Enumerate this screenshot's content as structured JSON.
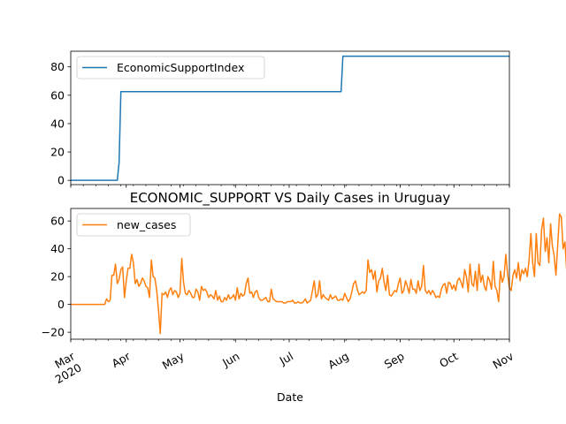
{
  "chart_data": [
    {
      "type": "line",
      "title": "",
      "xlabel": "",
      "ylabel": "",
      "ylim": [
        -3,
        91
      ],
      "yticks": [
        0,
        20,
        40,
        60,
        80
      ],
      "legend_placement": "top-left",
      "grid": false,
      "series": [
        {
          "name": "EconomicSupportIndex",
          "color": "#1f77b4",
          "points": [
            [
              "2020-03-01",
              0
            ],
            [
              "2020-03-27",
              0
            ],
            [
              "2020-03-28",
              12.5
            ],
            [
              "2020-03-29",
              62.5
            ],
            [
              "2020-07-30",
              62.5
            ],
            [
              "2020-07-31",
              87.5
            ],
            [
              "2020-11-01",
              87.5
            ]
          ]
        }
      ]
    },
    {
      "type": "line",
      "title": "ECONOMIC_SUPPORT VS Daily Cases in Uruguay",
      "xlabel": "Date",
      "ylabel": "",
      "ylim": [
        -25,
        69
      ],
      "yticks": [
        -20,
        0,
        20,
        40,
        60
      ],
      "x_tick_labels": [
        {
          "date": "2020-03-01",
          "label": "Mar",
          "sublabel": "2020"
        },
        {
          "date": "2020-04-01",
          "label": "Apr"
        },
        {
          "date": "2020-05-01",
          "label": "May"
        },
        {
          "date": "2020-06-01",
          "label": "Jun"
        },
        {
          "date": "2020-07-01",
          "label": "Jul"
        },
        {
          "date": "2020-08-01",
          "label": "Aug"
        },
        {
          "date": "2020-09-01",
          "label": "Sep"
        },
        {
          "date": "2020-10-01",
          "label": "Oct"
        },
        {
          "date": "2020-11-01",
          "label": "Nov"
        }
      ],
      "legend_placement": "top-left",
      "grid": false,
      "series": [
        {
          "name": "new_cases",
          "color": "#ff7f0e",
          "start": "2020-03-01",
          "values": [
            0,
            0,
            0,
            0,
            0,
            0,
            0,
            0,
            0,
            0,
            0,
            0,
            0,
            0,
            0,
            0,
            0,
            0,
            0,
            0,
            4,
            2,
            3,
            21,
            21,
            29,
            15,
            18,
            25,
            27,
            5,
            17,
            26,
            26,
            36,
            30,
            15,
            18,
            13,
            15,
            19,
            17,
            13,
            12,
            5,
            32,
            20,
            19,
            10,
            -4,
            -21,
            8,
            7,
            9,
            5,
            10,
            12,
            7,
            10,
            9,
            5,
            8,
            33,
            16,
            8,
            7,
            10,
            8,
            5,
            5,
            11,
            9,
            3,
            13,
            10,
            11,
            9,
            5,
            7,
            6,
            4,
            10,
            3,
            6,
            2,
            2,
            5,
            3,
            7,
            4,
            5,
            7,
            3,
            12,
            4,
            8,
            6,
            7,
            15,
            19,
            8,
            9,
            5,
            9,
            10,
            5,
            3,
            3,
            4,
            5,
            2,
            2,
            11,
            4,
            3,
            2,
            2,
            2,
            2,
            1,
            1,
            2,
            2,
            2,
            3,
            1,
            1,
            2,
            1,
            1,
            2,
            4,
            1,
            2,
            3,
            10,
            17,
            5,
            7,
            17,
            4,
            7,
            5,
            4,
            3,
            7,
            4,
            5,
            6,
            3,
            3,
            4,
            3,
            8,
            5,
            2,
            4,
            9,
            15,
            17,
            11,
            7,
            8,
            9,
            8,
            10,
            32,
            23,
            25,
            18,
            24,
            9,
            17,
            19,
            26,
            16,
            10,
            21,
            7,
            6,
            8,
            10,
            9,
            15,
            19,
            8,
            10,
            17,
            13,
            8,
            18,
            11,
            11,
            8,
            17,
            10,
            13,
            28,
            10,
            8,
            10,
            7,
            10,
            8,
            5,
            6,
            5,
            11,
            14,
            15,
            8,
            16,
            15,
            11,
            14,
            10,
            17,
            19,
            16,
            12,
            25,
            20,
            9,
            29,
            15,
            13,
            24,
            10,
            29,
            16,
            21,
            13,
            10,
            20,
            17,
            11,
            31,
            13,
            10,
            2,
            24,
            16,
            20,
            36,
            22,
            12,
            10,
            21,
            25,
            19,
            30,
            17,
            25,
            22,
            26,
            20,
            32,
            51,
            30,
            20,
            51,
            30,
            28,
            54,
            62,
            38,
            48,
            30,
            58,
            42,
            35,
            21,
            43,
            65,
            63,
            40,
            45,
            24
          ]
        }
      ]
    }
  ]
}
